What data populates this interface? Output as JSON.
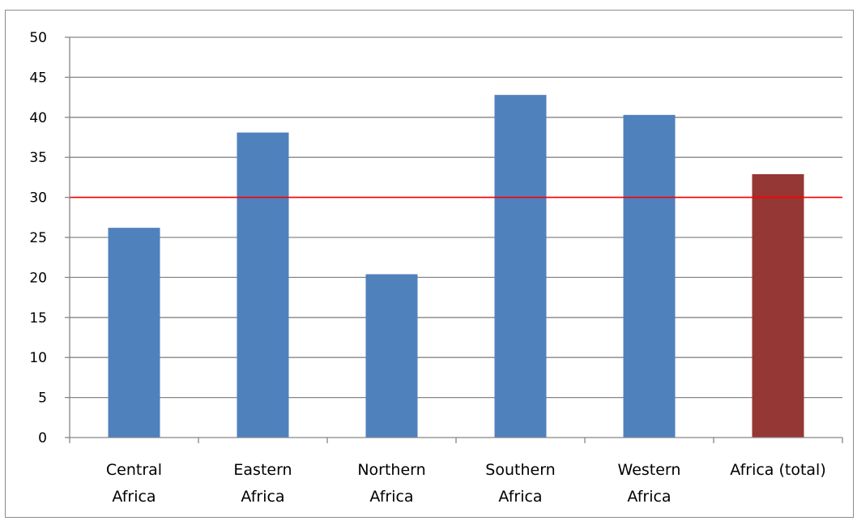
{
  "chart_data": {
    "type": "bar",
    "categories": [
      [
        "Central",
        "Africa"
      ],
      [
        "Eastern",
        "Africa"
      ],
      [
        "Northern",
        "Africa"
      ],
      [
        "Southern",
        "Africa"
      ],
      [
        "Western",
        "Africa"
      ],
      [
        "Africa (total)"
      ]
    ],
    "values": [
      26.2,
      38.1,
      20.4,
      42.8,
      40.3,
      32.9
    ],
    "bar_colors": [
      "#4f81bd",
      "#4f81bd",
      "#4f81bd",
      "#4f81bd",
      "#4f81bd",
      "#953735"
    ],
    "ylim": [
      0,
      50
    ],
    "ytick_step": 5,
    "yticks": [
      "0",
      "5",
      "10",
      "15",
      "20",
      "25",
      "30",
      "35",
      "40",
      "45",
      "50"
    ],
    "reference_line": {
      "value": 30,
      "color": "#ff0000"
    },
    "grid": true,
    "legend": "none",
    "title": "",
    "xlabel": "",
    "ylabel": ""
  }
}
